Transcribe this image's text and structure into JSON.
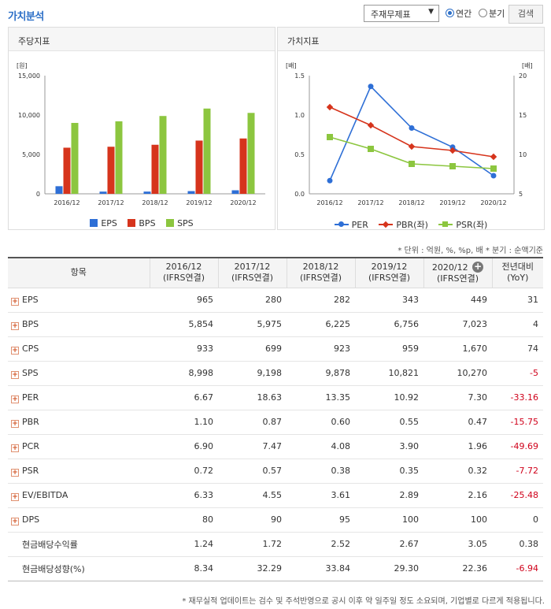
{
  "header": {
    "title": "가치분석",
    "select_value": "주재무제표",
    "radio_annual": "연간",
    "radio_quarter": "분기",
    "search_label": "검색"
  },
  "colors": {
    "eps": "#2e6fd6",
    "bps": "#d6341c",
    "sps": "#8cc63f",
    "per": "#2e6fd6",
    "pbr": "#d6341c",
    "psr": "#8cc63f"
  },
  "chart_data": [
    {
      "type": "bar",
      "title": "주당지표",
      "unit_label": "[원]",
      "categories": [
        "2016/12",
        "2017/12",
        "2018/12",
        "2019/12",
        "2020/12"
      ],
      "y_ticks": [
        "15,000",
        "10,000",
        "5,000",
        "0"
      ],
      "ylim": [
        0,
        15000
      ],
      "series": [
        {
          "name": "EPS",
          "values": [
            965,
            280,
            282,
            343,
            449
          ]
        },
        {
          "name": "BPS",
          "values": [
            5854,
            5975,
            6225,
            6756,
            7023
          ]
        },
        {
          "name": "SPS",
          "values": [
            8998,
            9198,
            9878,
            10821,
            10270
          ]
        }
      ],
      "legend": "bottom"
    },
    {
      "type": "line",
      "title": "가치지표",
      "left_unit_label": "[배]",
      "right_unit_label": "[배]",
      "categories": [
        "2016/12",
        "2017/12",
        "2018/12",
        "2019/12",
        "2020/12"
      ],
      "left_ticks": [
        "1.5",
        "1.0",
        "0.5",
        "0.0"
      ],
      "right_ticks": [
        "20",
        "15",
        "10",
        "5"
      ],
      "ylim_left": [
        0,
        1.5
      ],
      "ylim_right": [
        5,
        20
      ],
      "series": [
        {
          "name": "PER",
          "axis": "right",
          "values": [
            6.67,
            18.63,
            13.35,
            10.92,
            7.3
          ]
        },
        {
          "name": "PBR(좌)",
          "axis": "left",
          "values": [
            1.1,
            0.87,
            0.6,
            0.55,
            0.47
          ]
        },
        {
          "name": "PSR(좌)",
          "axis": "left",
          "values": [
            0.72,
            0.57,
            0.38,
            0.35,
            0.32
          ]
        }
      ],
      "legend": "bottom"
    }
  ],
  "note_top": "* 단위 : 억원, %, %p, 배    * 분기 : 순액기준",
  "table": {
    "header_item": "항목",
    "columns": [
      {
        "period": "2016/12",
        "basis": "(IFRS연결)"
      },
      {
        "period": "2017/12",
        "basis": "(IFRS연결)"
      },
      {
        "period": "2018/12",
        "basis": "(IFRS연결)"
      },
      {
        "period": "2019/12",
        "basis": "(IFRS연결)"
      },
      {
        "period": "2020/12",
        "basis": "(IFRS연결)"
      }
    ],
    "yoy_line1": "전년대비",
    "yoy_line2": "(YoY)",
    "rows": [
      {
        "label": "EPS",
        "expand": true,
        "values": [
          "965",
          "280",
          "282",
          "343",
          "449"
        ],
        "yoy": "31",
        "neg": false
      },
      {
        "label": "BPS",
        "expand": true,
        "values": [
          "5,854",
          "5,975",
          "6,225",
          "6,756",
          "7,023"
        ],
        "yoy": "4",
        "neg": false
      },
      {
        "label": "CPS",
        "expand": true,
        "values": [
          "933",
          "699",
          "923",
          "959",
          "1,670"
        ],
        "yoy": "74",
        "neg": false
      },
      {
        "label": "SPS",
        "expand": true,
        "values": [
          "8,998",
          "9,198",
          "9,878",
          "10,821",
          "10,270"
        ],
        "yoy": "-5",
        "neg": true
      },
      {
        "label": "PER",
        "expand": true,
        "values": [
          "6.67",
          "18.63",
          "13.35",
          "10.92",
          "7.30"
        ],
        "yoy": "-33.16",
        "neg": true
      },
      {
        "label": "PBR",
        "expand": true,
        "values": [
          "1.10",
          "0.87",
          "0.60",
          "0.55",
          "0.47"
        ],
        "yoy": "-15.75",
        "neg": true
      },
      {
        "label": "PCR",
        "expand": true,
        "values": [
          "6.90",
          "7.47",
          "4.08",
          "3.90",
          "1.96"
        ],
        "yoy": "-49.69",
        "neg": true
      },
      {
        "label": "PSR",
        "expand": true,
        "values": [
          "0.72",
          "0.57",
          "0.38",
          "0.35",
          "0.32"
        ],
        "yoy": "-7.72",
        "neg": true
      },
      {
        "label": "EV/EBITDA",
        "expand": true,
        "values": [
          "6.33",
          "4.55",
          "3.61",
          "2.89",
          "2.16"
        ],
        "yoy": "-25.48",
        "neg": true
      },
      {
        "label": "DPS",
        "expand": true,
        "values": [
          "80",
          "90",
          "95",
          "100",
          "100"
        ],
        "yoy": "0",
        "neg": false
      },
      {
        "label": "현금배당수익률",
        "expand": false,
        "values": [
          "1.24",
          "1.72",
          "2.52",
          "2.67",
          "3.05"
        ],
        "yoy": "0.38",
        "neg": false
      },
      {
        "label": "현금배당성향(%)",
        "expand": false,
        "values": [
          "8.34",
          "32.29",
          "33.84",
          "29.30",
          "22.36"
        ],
        "yoy": "-6.94",
        "neg": true
      }
    ]
  },
  "note_bottom": "* 재무실적 업데이트는 검수 및 주석반영으로 공시 이후 약 일주일 정도 소요되며, 기업별로 다르게 적용됩니다."
}
